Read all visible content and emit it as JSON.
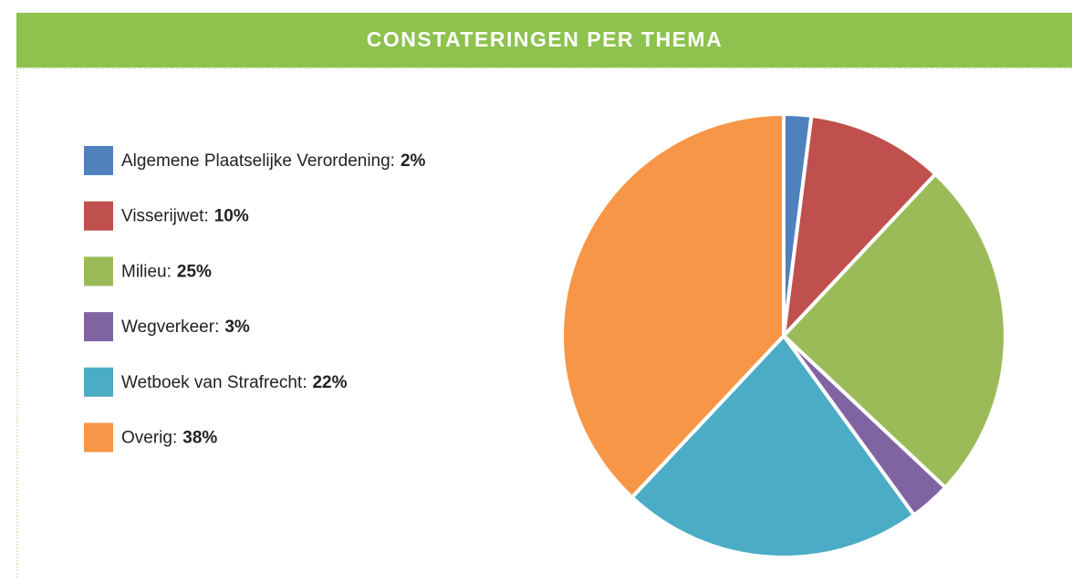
{
  "chart_data": {
    "type": "pie",
    "title": "CONSTATERINGEN PER THEMA",
    "categories": [
      "Algemene Plaatselijke Verordening:",
      "Visserijwet:",
      "Milieu:",
      "Wegverkeer:",
      "Wetboek van Strafrecht:",
      "Overig:"
    ],
    "values": [
      2,
      10,
      25,
      3,
      22,
      38
    ],
    "value_labels": [
      "2%",
      "10%",
      "25%",
      "3%",
      "22%",
      "38%"
    ],
    "colors": [
      "#4f81bd",
      "#c0504d",
      "#9bbb59",
      "#8064a2",
      "#4bacc6",
      "#f79646"
    ]
  }
}
